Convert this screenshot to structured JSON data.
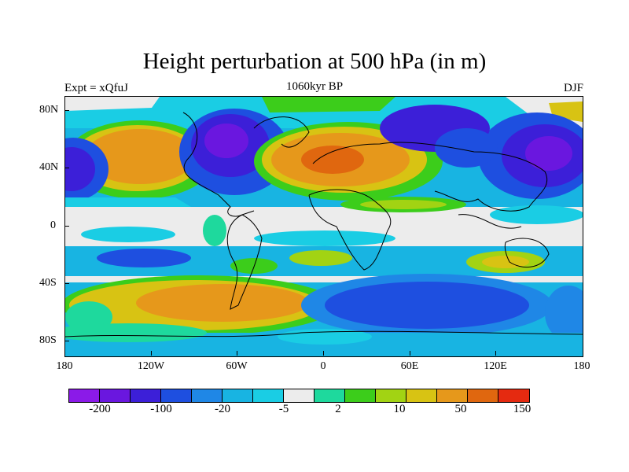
{
  "figure": {
    "title": "Height perturbation at 500 hPa (in m)",
    "left_subtitle": "Expt = xQfuJ",
    "center_subtitle": "1060kyr BP",
    "right_subtitle": "DJF"
  },
  "axes": {
    "y_ticks": [
      "80N",
      "40N",
      "0",
      "40S",
      "80S"
    ],
    "x_ticks": [
      "180",
      "120W",
      "60W",
      "0",
      "60E",
      "120E",
      "180"
    ]
  },
  "colorbar": {
    "colors": [
      "#8b1ae8",
      "#6a17df",
      "#3c1fd8",
      "#1e4fe0",
      "#1f87e6",
      "#18b4e2",
      "#1acde4",
      "#ececec",
      "#1ed99d",
      "#3ccd1b",
      "#a2d313",
      "#d8c313",
      "#e6981b",
      "#e0670f",
      "#e52a10"
    ],
    "labels": [
      "-200",
      "-100",
      "-20",
      "-5",
      "2",
      "10",
      "50",
      "150"
    ]
  }
}
